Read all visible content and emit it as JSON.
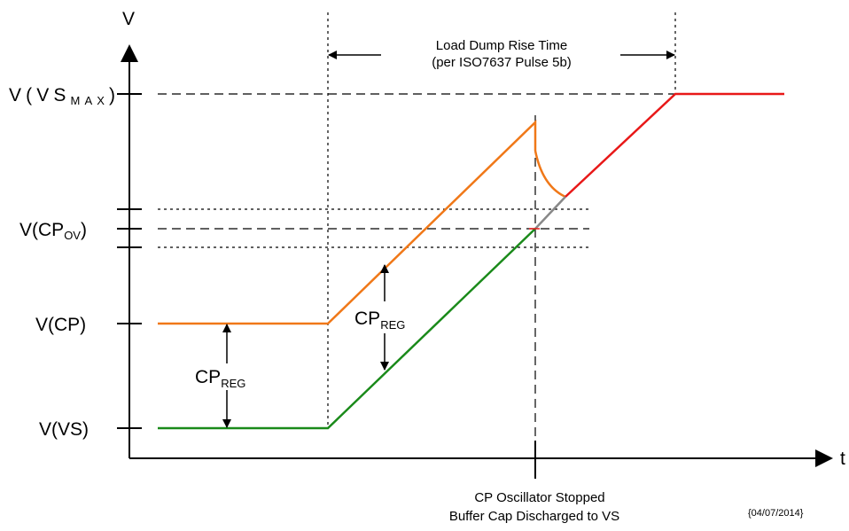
{
  "axes": {
    "y_label": "V",
    "x_label": "t"
  },
  "levels": {
    "vs_max": {
      "main": "V(VS",
      "sub": "MAX",
      "close": ")"
    },
    "cp_ov": {
      "main": "V(CP",
      "sub": "OV",
      "close": ")"
    },
    "cp": "V(CP)",
    "vs": "V(VS)"
  },
  "annotations": {
    "rise_time_line1": "Load Dump Rise Time",
    "rise_time_line2": "(per ISO7637 Pulse 5b)",
    "cp_reg_main": "CP",
    "cp_reg_sub": "REG",
    "oscillator_line1": "CP Oscillator Stopped",
    "oscillator_line2": "Buffer Cap Discharged to VS",
    "date": "{04/07/2014}"
  },
  "colors": {
    "cp_trace": "#f07818",
    "vs_trace": "#1a8a1a",
    "vs_max_segment": "#e81818",
    "discharged_segment": "#888888",
    "axis": "#000000"
  }
}
